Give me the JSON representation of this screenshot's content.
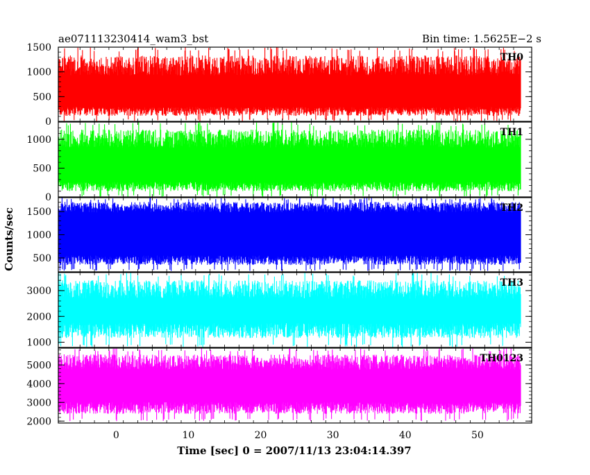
{
  "header": {
    "left": "ae071113230414_wam3_bst",
    "right": "Bin time: 1.5625E−2 s"
  },
  "chart_data": {
    "type": "line",
    "xlabel": "Time [sec] 0 = 2007/11/13 23:04:14.397",
    "ylabel": "Counts/sec",
    "xlim": [
      -8,
      57.5
    ],
    "x_ticks": [
      0,
      10,
      20,
      30,
      40,
      50
    ],
    "x_tick_labels": [
      "0",
      "10",
      "20",
      "30",
      "40",
      "50"
    ],
    "data_x_range": [
      -8,
      56
    ],
    "panels": [
      {
        "name": "TH0",
        "color": "#ff0000",
        "ylim": [
          0,
          1500
        ],
        "y_ticks": [
          0,
          500,
          1000,
          1500
        ],
        "y_tick_labels": [
          "0",
          "500",
          "1000",
          "1500"
        ],
        "typical_low": 200,
        "typical_high": 1050,
        "min": 0,
        "max": 1500
      },
      {
        "name": "TH1",
        "color": "#00ff00",
        "ylim": [
          0,
          1300
        ],
        "y_ticks": [
          0,
          500,
          1000
        ],
        "y_tick_labels": [
          "0",
          "500",
          "1000"
        ],
        "typical_low": 180,
        "typical_high": 950,
        "min": 0,
        "max": 1300
      },
      {
        "name": "TH2",
        "color": "#0000ff",
        "ylim": [
          200,
          1800
        ],
        "y_ticks": [
          500,
          1000,
          1500
        ],
        "y_tick_labels": [
          "500",
          "1000",
          "1500"
        ],
        "typical_low": 450,
        "typical_high": 1550,
        "min": 220,
        "max": 1800
      },
      {
        "name": "TH3",
        "color": "#00ffff",
        "ylim": [
          800,
          3700
        ],
        "y_ticks": [
          1000,
          2000,
          3000
        ],
        "y_tick_labels": [
          "1000",
          "2000",
          "3000"
        ],
        "typical_low": 1450,
        "typical_high": 2900,
        "min": 800,
        "max": 3700
      },
      {
        "name": "TH0123",
        "color": "#ff00ff",
        "ylim": [
          1900,
          5900
        ],
        "y_ticks": [
          2000,
          3000,
          4000,
          5000
        ],
        "y_tick_labels": [
          "2000",
          "3000",
          "4000",
          "5000"
        ],
        "typical_low": 2700,
        "typical_high": 5000,
        "min": 2000,
        "max": 5900
      }
    ]
  }
}
